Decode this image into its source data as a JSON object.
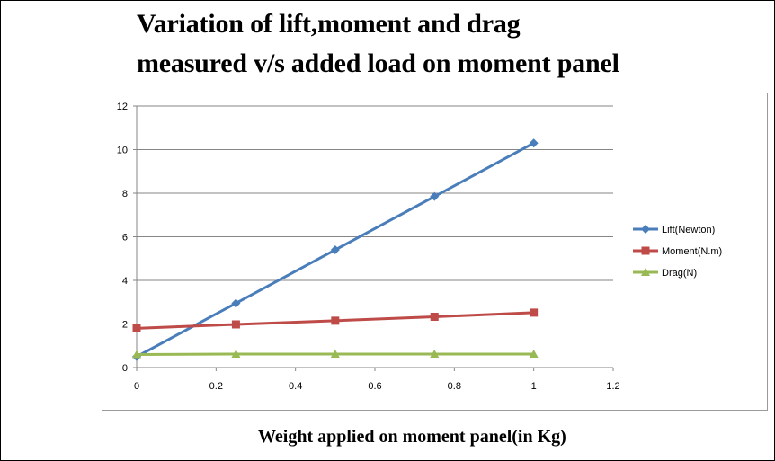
{
  "chart_data": {
    "type": "line",
    "title_line1": "Variation of lift,moment and drag",
    "title_line2": "measured v/s added load on moment panel",
    "xlabel": "Weight applied on moment panel(in Kg)",
    "ylabel": "",
    "xlim": [
      0,
      1.2
    ],
    "ylim": [
      0,
      12
    ],
    "x_ticks": [
      "0",
      "0.2",
      "0.4",
      "0.6",
      "0.8",
      "1",
      "1.2"
    ],
    "y_ticks": [
      "0",
      "2",
      "4",
      "6",
      "8",
      "10",
      "12"
    ],
    "x": [
      0,
      0.25,
      0.5,
      0.75,
      1
    ],
    "grid": "horizontal",
    "legend_position": "right",
    "series": [
      {
        "name": "Lift(Newton)",
        "color": "#4a7ebb",
        "marker": "diamond",
        "values": [
          0.5,
          2.95,
          5.4,
          7.85,
          10.3
        ]
      },
      {
        "name": "Moment(N.m)",
        "color": "#be4b48",
        "marker": "square",
        "values": [
          1.8,
          1.98,
          2.15,
          2.33,
          2.52
        ]
      },
      {
        "name": "Drag(N)",
        "color": "#98b954",
        "marker": "triangle",
        "values": [
          0.6,
          0.62,
          0.62,
          0.62,
          0.62
        ]
      }
    ]
  }
}
